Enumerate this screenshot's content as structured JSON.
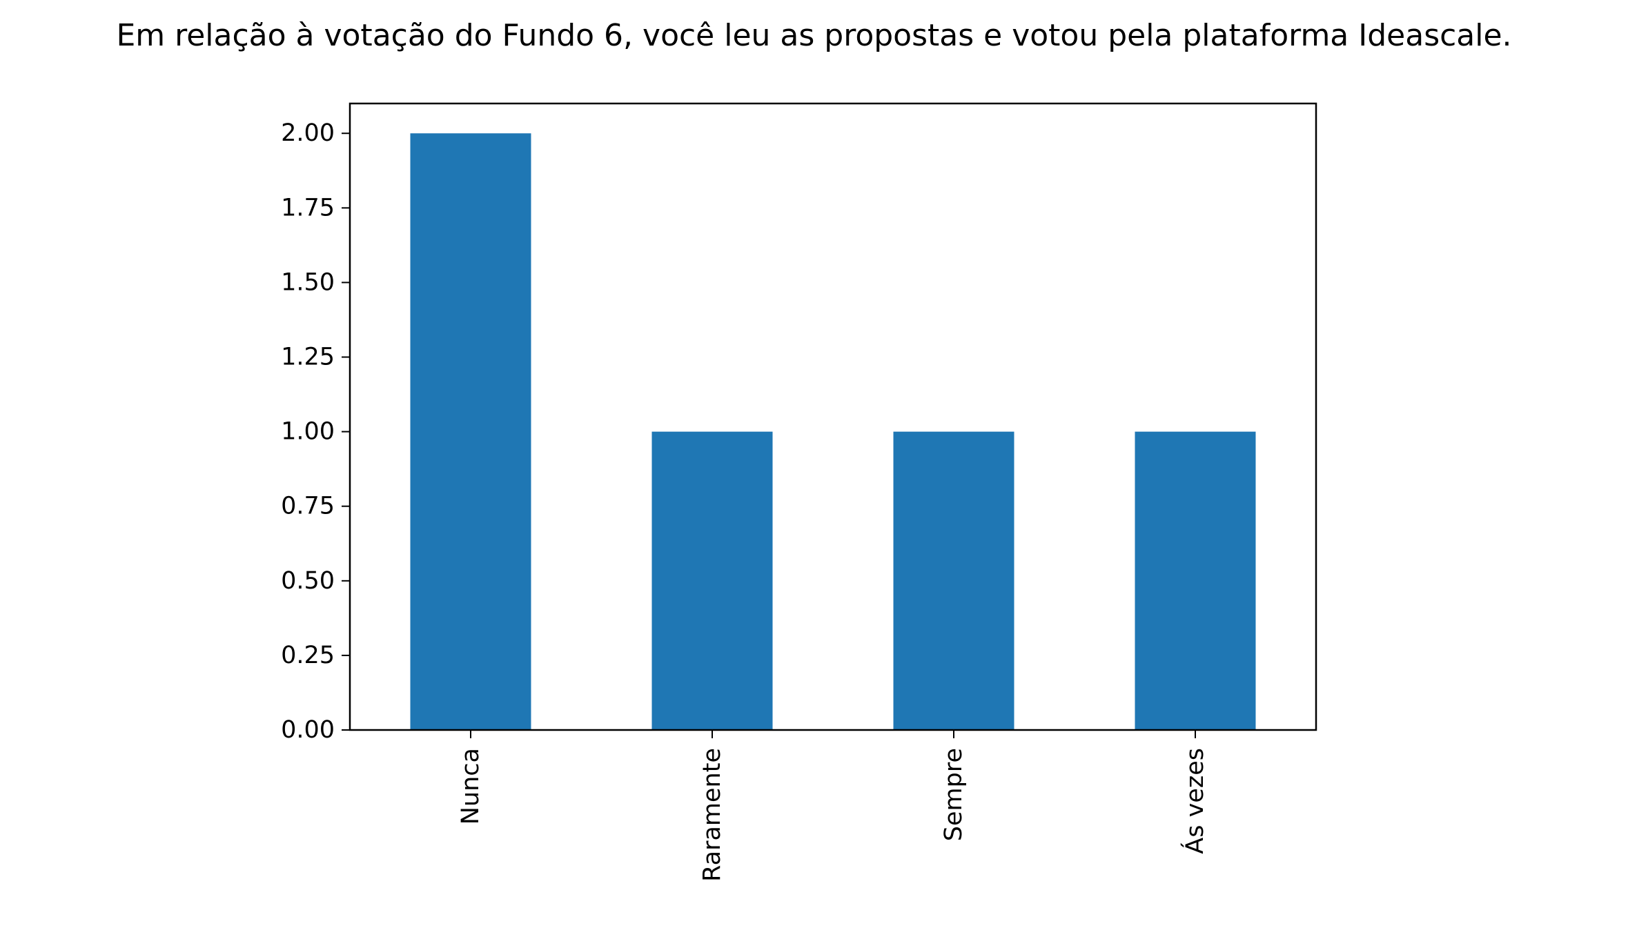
{
  "chart_data": {
    "type": "bar",
    "title": "Em relação à votação do Fundo 6, você leu as propostas e votou pela plataforma Ideascale.",
    "xlabel": "",
    "ylabel": "",
    "categories": [
      "Nunca",
      "Raramente",
      "Sempre",
      "Ás vezes"
    ],
    "values": [
      2,
      1,
      1,
      1
    ],
    "ylim": [
      0,
      2.1
    ],
    "yticks": [
      "0.00",
      "0.25",
      "0.50",
      "0.75",
      "1.00",
      "1.25",
      "1.50",
      "1.75",
      "2.00"
    ],
    "bar_color": "#1f77b4",
    "grid": false,
    "legend": "none",
    "x_tick_rotation": "vertical"
  }
}
